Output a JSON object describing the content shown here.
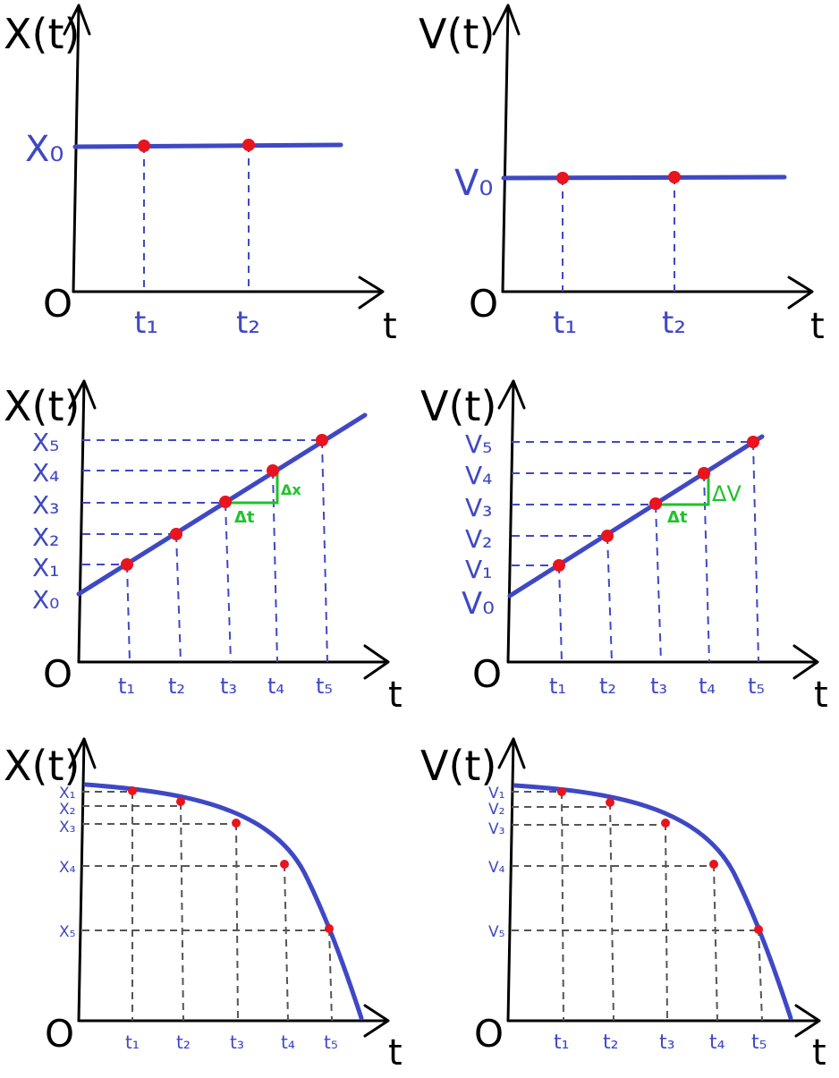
{
  "colors": {
    "axis": "#000000",
    "curve": "#3f48c4",
    "point": "#e8141e",
    "guide_blue": "#3f48c4",
    "guide_grey": "#555555",
    "label_blue": "#3f48c4",
    "delta_green": "#1fc22b"
  },
  "labels": {
    "origin": "O",
    "t_axis": "t",
    "x_axis": "X(t)",
    "v_axis": "V(t)",
    "dt": "Δt",
    "dx": "Δx",
    "dv": "ΔV"
  },
  "chart_data": [
    {
      "id": "x-constant",
      "type": "line",
      "ylabel": "X(t)",
      "xlabel": "t",
      "y_level_label": "X₀",
      "ticks": [
        "t₁",
        "t₂"
      ],
      "points": [
        {
          "x": "t₁",
          "y": "X₀"
        },
        {
          "x": "t₂",
          "y": "X₀"
        }
      ]
    },
    {
      "id": "v-constant",
      "type": "line",
      "ylabel": "V(t)",
      "xlabel": "t",
      "y_level_label": "V₀",
      "ticks": [
        "t₁",
        "t₂"
      ],
      "points": [
        {
          "x": "t₁",
          "y": "V₀"
        },
        {
          "x": "t₂",
          "y": "V₀"
        }
      ]
    },
    {
      "id": "x-linear",
      "type": "line",
      "ylabel": "X(t)",
      "xlabel": "t",
      "y_ticks": [
        "X₅",
        "X₄",
        "X₃",
        "X₂",
        "X₁",
        "X₀"
      ],
      "ticks": [
        "t₁",
        "t₂",
        "t₃",
        "t₄",
        "t₅"
      ],
      "delta_labels": [
        "Δt",
        "Δx"
      ]
    },
    {
      "id": "v-linear",
      "type": "line",
      "ylabel": "V(t)",
      "xlabel": "t",
      "y_ticks": [
        "V₅",
        "V₄",
        "V₃",
        "V₂",
        "V₁",
        "V₀"
      ],
      "ticks": [
        "t₁",
        "t₂",
        "t₃",
        "t₄",
        "t₅"
      ],
      "delta_labels": [
        "Δt",
        "ΔV"
      ]
    },
    {
      "id": "x-curve",
      "type": "line",
      "ylabel": "X(t)",
      "xlabel": "t",
      "y_ticks": [
        "X₁",
        "X₂",
        "X₃",
        "X₄",
        "X₅"
      ],
      "ticks": [
        "t₁",
        "t₂",
        "t₃",
        "t₄",
        "t₅"
      ]
    },
    {
      "id": "v-curve",
      "type": "line",
      "ylabel": "V(t)",
      "xlabel": "t",
      "y_ticks": [
        "V₁",
        "V₂",
        "V₃",
        "V₄",
        "V₅"
      ],
      "ticks": [
        "t₁",
        "t₂",
        "t₃",
        "t₄",
        "t₅"
      ]
    }
  ]
}
